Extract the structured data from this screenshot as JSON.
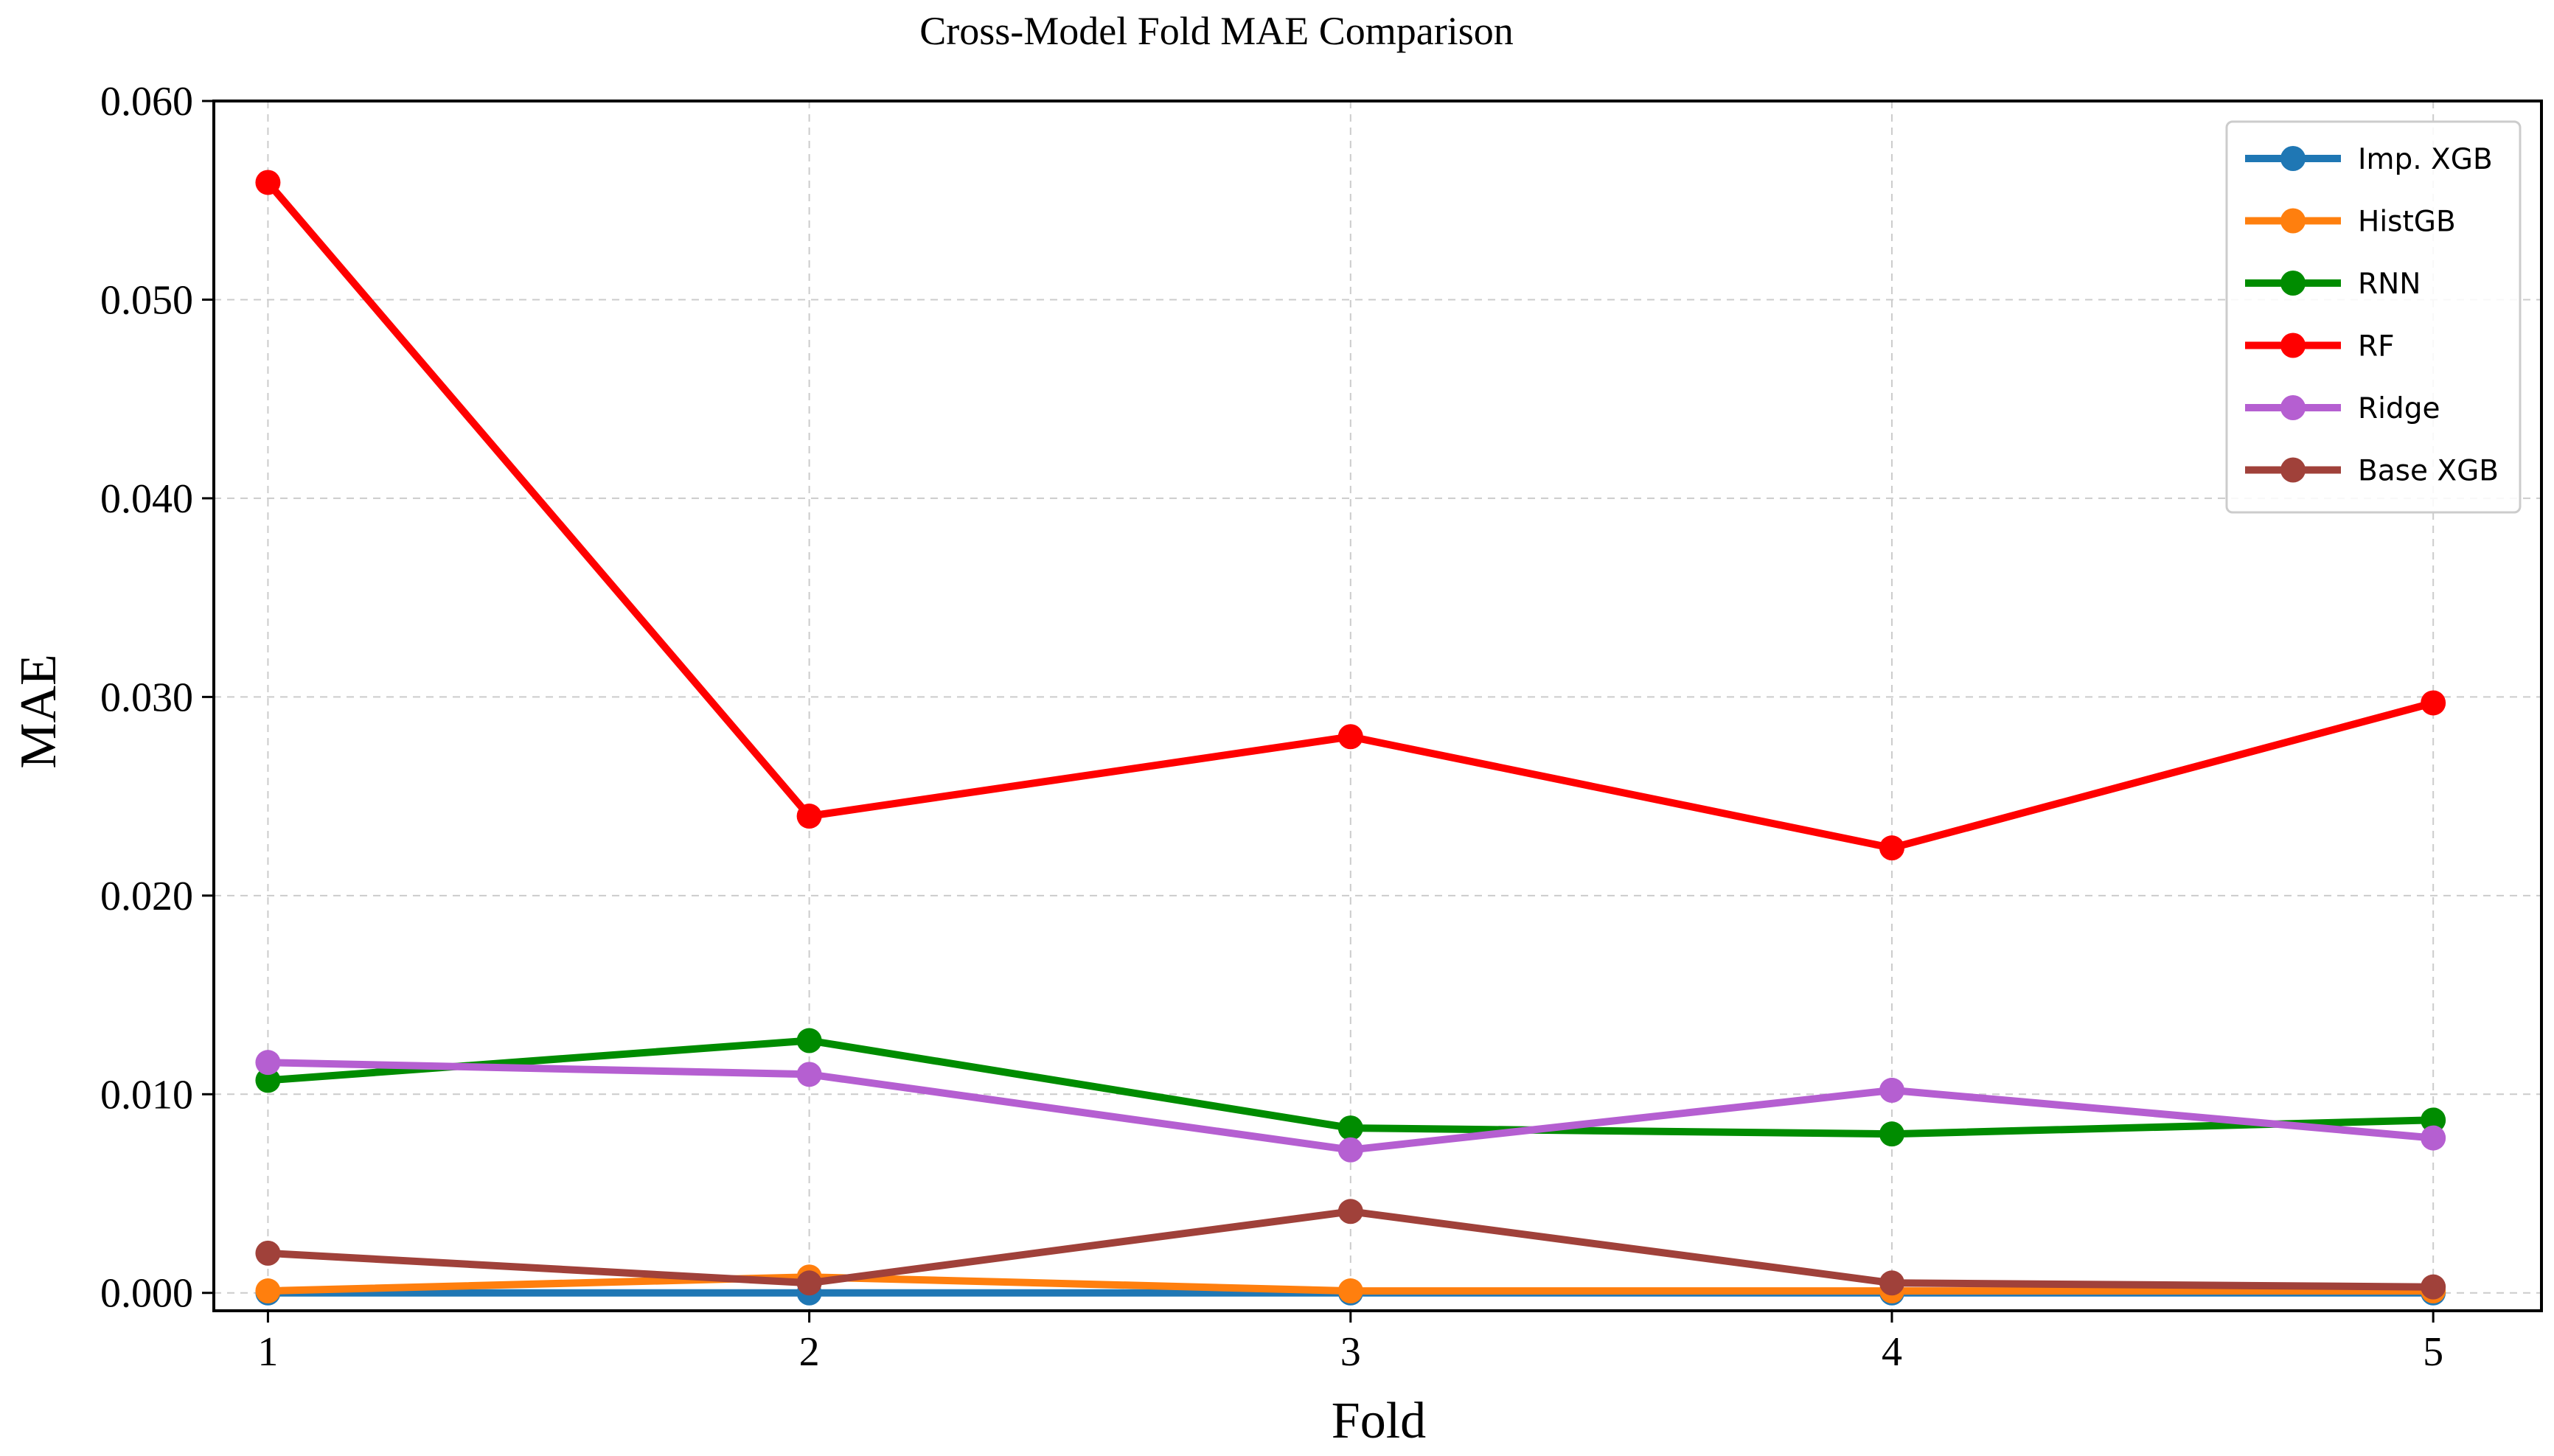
{
  "chart_data": {
    "type": "line",
    "title": "Cross-Model Fold MAE Comparison",
    "xlabel": "Fold",
    "ylabel": "MAE",
    "x": [
      1,
      2,
      3,
      4,
      5
    ],
    "x_tick_labels": [
      "1",
      "2",
      "3",
      "4",
      "5"
    ],
    "xlim": [
      0.9,
      5.2
    ],
    "ylim": [
      -0.0009,
      0.06
    ],
    "y_ticks": [
      0.0,
      0.01,
      0.02,
      0.03,
      0.04,
      0.05,
      0.06
    ],
    "y_tick_labels": [
      "0.000",
      "0.010",
      "0.020",
      "0.030",
      "0.040",
      "0.050",
      "0.060"
    ],
    "grid": true,
    "legend_position": "top-right",
    "series": [
      {
        "name": "Imp. XGB",
        "color": "#1f77b4",
        "values": [
          0.0,
          0.0,
          0.0,
          0.0,
          0.0
        ]
      },
      {
        "name": "HistGB",
        "color": "#ff7f0e",
        "values": [
          0.0001,
          0.0008,
          0.0001,
          0.0001,
          0.0001
        ]
      },
      {
        "name": "RNN",
        "color": "#008c00",
        "values": [
          0.0107,
          0.0127,
          0.0083,
          0.008,
          0.0087
        ]
      },
      {
        "name": "RF",
        "color": "#ff0000",
        "values": [
          0.0559,
          0.024,
          0.028,
          0.0224,
          0.0297
        ]
      },
      {
        "name": "Ridge",
        "color": "#b55fd1",
        "values": [
          0.0116,
          0.011,
          0.0072,
          0.0102,
          0.0078
        ]
      },
      {
        "name": "Base XGB",
        "color": "#a0413a",
        "values": [
          0.002,
          0.0005,
          0.0041,
          0.0005,
          0.0003
        ]
      }
    ]
  }
}
